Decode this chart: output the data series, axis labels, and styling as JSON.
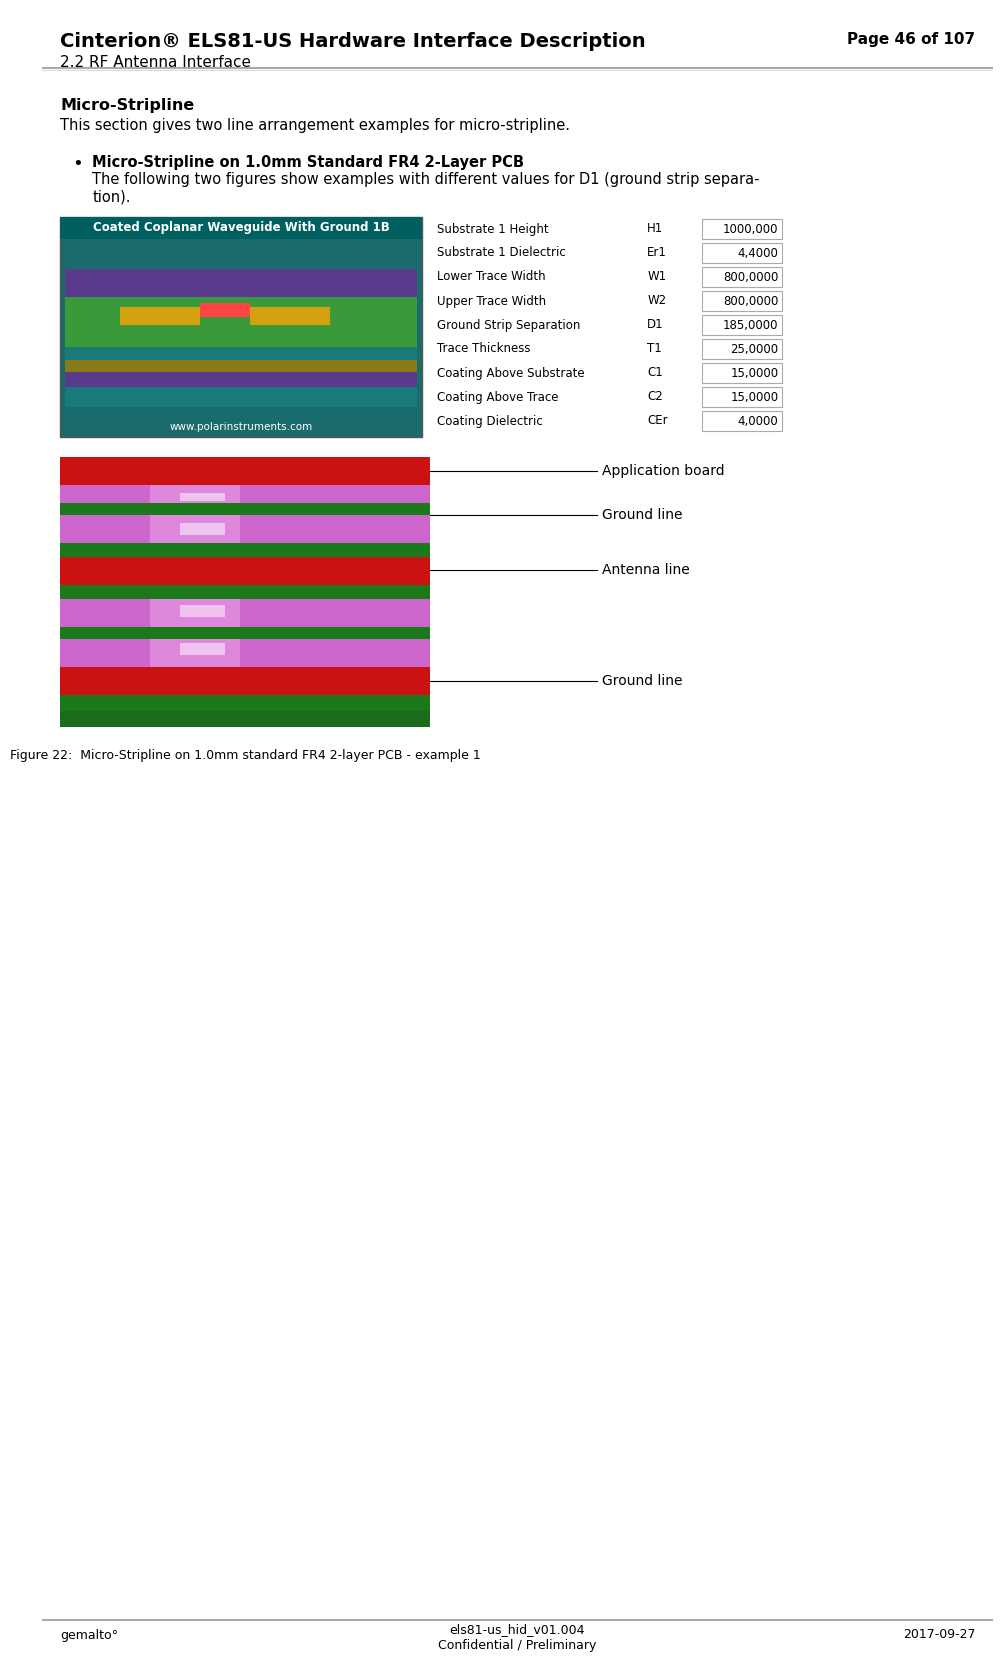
{
  "page_title": "Cinterion® ELS81-US Hardware Interface Description",
  "page_right": "Page 46 of 107",
  "section": "2.2 RF Antenna Interface",
  "header_line_color": "#cccccc",
  "bg_color": "#ffffff",
  "section_heading": "Micro-Stripline",
  "section_body": "This section gives two line arrangement examples for micro-stripline.",
  "bullet_heading": "Micro-Stripline on 1.0mm Standard FR4 2-Layer PCB",
  "bullet_body1": "The following two figures show examples with different values for D1 (ground strip separa-",
  "bullet_body2": "tion).",
  "table_label_col": [
    "Substrate 1 Height",
    "Substrate 1 Dielectric",
    "Lower Trace Width",
    "Upper Trace Width",
    "Ground Strip Separation",
    "Trace Thickness",
    "Coating Above Substrate",
    "Coating Above Trace",
    "Coating Dielectric"
  ],
  "table_param_col": [
    "H1",
    "Er1",
    "W1",
    "W2",
    "D1",
    "T1",
    "C1",
    "C2",
    "CEr"
  ],
  "table_value_col": [
    "1000,000",
    "4,4000",
    "800,0000",
    "800,0000",
    "185,0000",
    "25,0000",
    "15,0000",
    "15,0000",
    "4,0000"
  ],
  "figure_caption": "Figure 22:  Micro-Stripline on 1.0mm standard FR4 2-layer PCB - example 1",
  "footer_left": "gemalto°",
  "footer_center1": "els81-us_hid_v01.004",
  "footer_center2": "Confidential / Preliminary",
  "footer_right": "2017-09-27",
  "waveguide_title": "Coated Coplanar Waveguide With Ground 1B",
  "waveguide_url": "www.polarinstruments.com",
  "annotation_app_board": "Application board",
  "annotation_ground_line1": "Ground line",
  "annotation_antenna_line": "Antenna line",
  "annotation_ground_line2": "Ground line"
}
